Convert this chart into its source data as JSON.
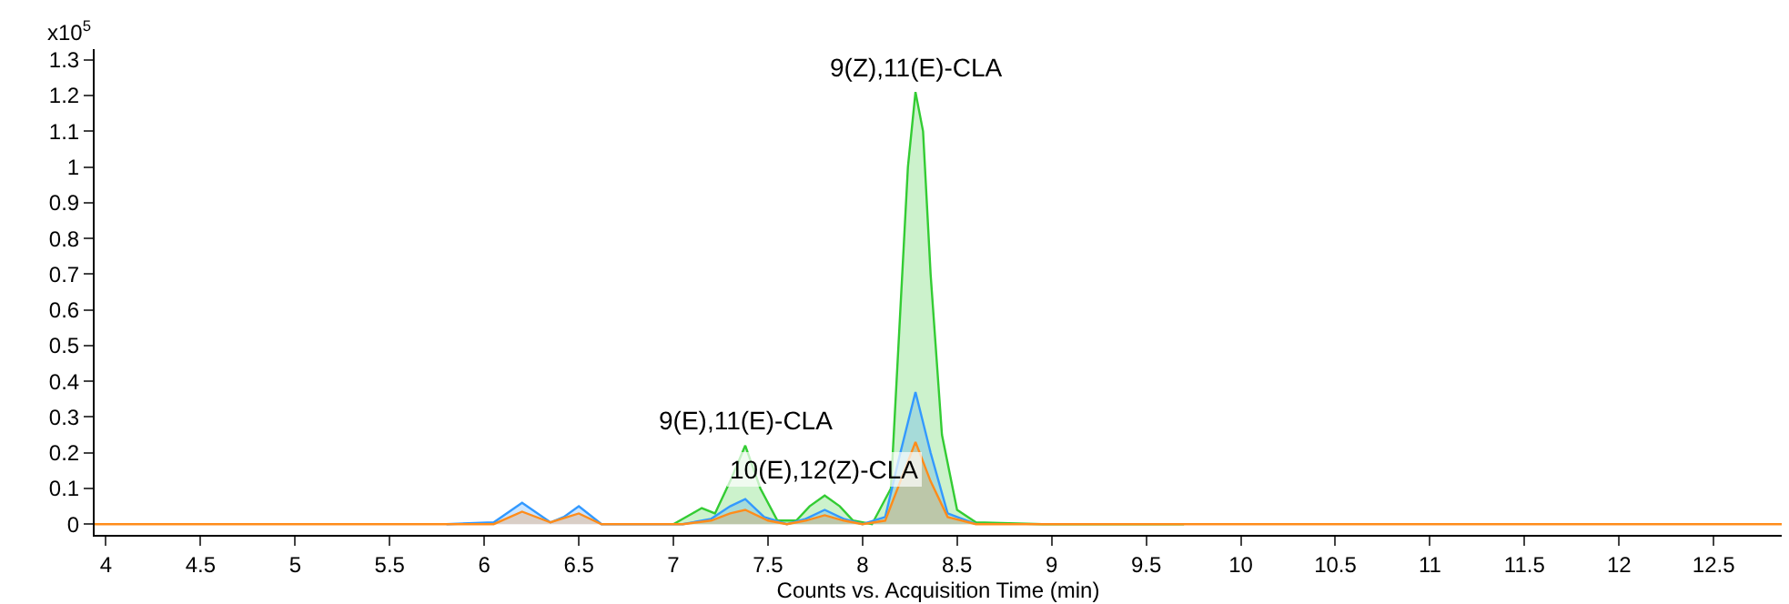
{
  "chart_data": {
    "type": "area",
    "ylabel": "x10$^{5}$",
    "xlabel": "Counts vs. Acquisition Time (min)",
    "xlim": [
      3.94,
      12.86
    ],
    "ylim": [
      -0.03,
      1.33
    ],
    "xticks": [
      4,
      4.5,
      5,
      5.5,
      6,
      6.5,
      7,
      7.5,
      8,
      8.5,
      9,
      9.5,
      10,
      10.5,
      11,
      11.5,
      12,
      12.5
    ],
    "yticks": [
      0,
      0.1,
      0.2,
      0.3,
      0.4,
      0.5,
      0.6,
      0.7,
      0.8,
      0.9,
      1,
      1.1,
      1.2,
      1.3
    ],
    "marker": "none",
    "line_style": "solid",
    "series": [
      {
        "color": "#33cc33",
        "x": [
          7.0,
          7.1,
          7.15,
          7.22,
          7.3,
          7.38,
          7.46,
          7.55,
          7.65,
          7.72,
          7.8,
          7.88,
          7.95,
          8.05,
          8.15,
          8.2,
          8.24,
          8.28,
          8.32,
          8.36,
          8.42,
          8.5,
          8.6,
          8.95,
          9.7
        ],
        "values": [
          0,
          0.03,
          0.045,
          0.03,
          0.12,
          0.22,
          0.1,
          0.01,
          0.01,
          0.05,
          0.08,
          0.05,
          0.01,
          0,
          0.1,
          0.6,
          1.0,
          1.21,
          1.1,
          0.7,
          0.25,
          0.04,
          0.005,
          0,
          0
        ]
      },
      {
        "color": "#3399ff",
        "x": [
          5.8,
          6.05,
          6.2,
          6.35,
          6.42,
          6.5,
          6.62,
          7.05,
          7.2,
          7.3,
          7.38,
          7.48,
          7.6,
          7.7,
          7.8,
          7.9,
          8.0,
          8.12,
          8.2,
          8.28,
          8.36,
          8.45,
          8.6
        ],
        "values": [
          0,
          0.005,
          0.06,
          0.005,
          0.02,
          0.05,
          0,
          0,
          0.015,
          0.05,
          0.07,
          0.02,
          0,
          0.015,
          0.04,
          0.015,
          0,
          0.02,
          0.2,
          0.37,
          0.2,
          0.03,
          0
        ]
      },
      {
        "color": "#ff8c1a",
        "x": [
          3.94,
          6.05,
          6.2,
          6.35,
          6.5,
          6.62,
          7.05,
          7.2,
          7.3,
          7.38,
          7.5,
          7.6,
          7.7,
          7.8,
          7.9,
          8.0,
          8.12,
          8.2,
          8.28,
          8.36,
          8.45,
          8.6,
          12.86
        ],
        "values": [
          0,
          0,
          0.035,
          0.005,
          0.03,
          0,
          0,
          0.01,
          0.03,
          0.04,
          0.01,
          0,
          0.01,
          0.025,
          0.01,
          0,
          0.01,
          0.12,
          0.23,
          0.12,
          0.02,
          0,
          0
        ]
      }
    ],
    "annotations": [
      {
        "text": "9(Z),11(E)-CLA",
        "x": 8.28,
        "y": 1.21
      },
      {
        "text": "9(E),11(E)-CLA",
        "x": 7.38,
        "y": 0.22
      },
      {
        "text": "10(E),12(Z)-CLA",
        "x": 7.8,
        "y": 0.08
      }
    ]
  }
}
